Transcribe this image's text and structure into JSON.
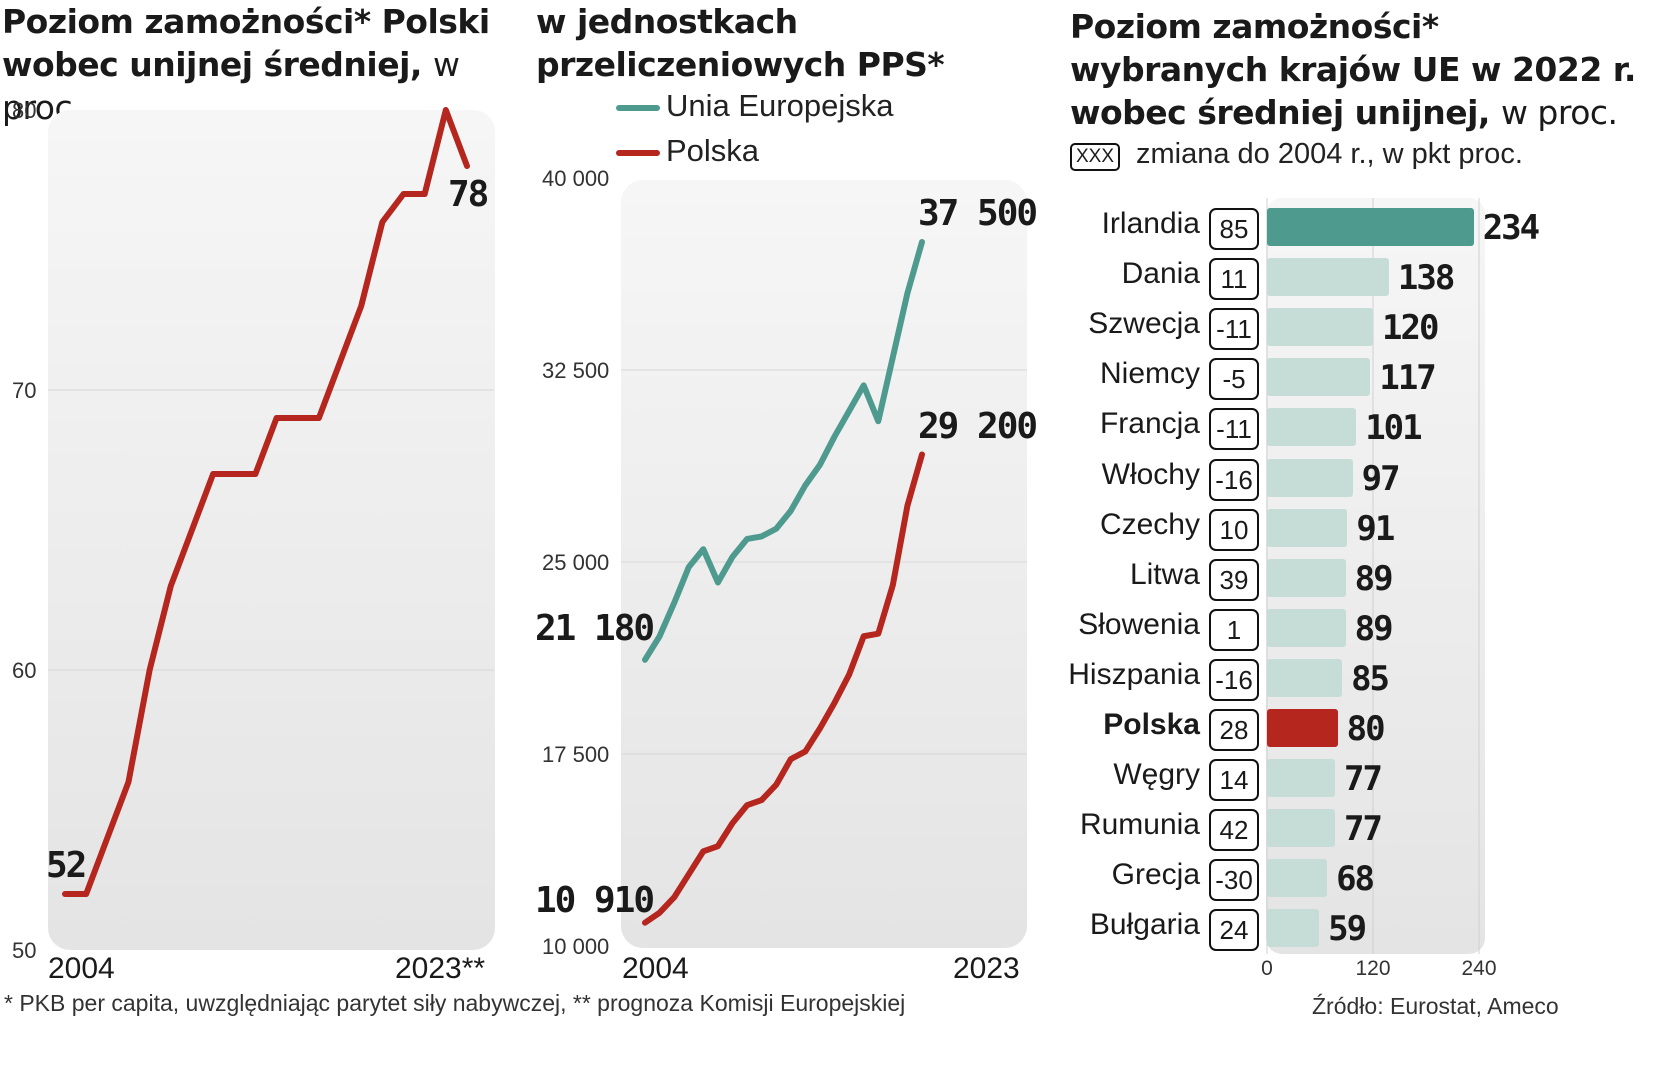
{
  "colors": {
    "poland": "#b5261e",
    "eu": "#4f9a8e",
    "bar_light": "#c6ddd7",
    "bar_ireland": "#4f9a8e",
    "bar_poland": "#b5261e"
  },
  "panel1": {
    "title_bold": "Poziom zamożności* Polski",
    "title_bold2": "wobec unijnej średniej,",
    "title_light": "w proc.",
    "start_label": "52",
    "end_label": "78",
    "x_start": "2004",
    "x_end": "2023**"
  },
  "panel2": {
    "title_line1": "w jednostkach",
    "title_line2": "przeliczeniowych PPS*",
    "legend_eu": "Unia Europejska",
    "legend_pl": "Polska",
    "eu_start_label": "21 180",
    "eu_end_label": "37 500",
    "pl_start_label": "10 910",
    "pl_end_label": "29 200",
    "x_start": "2004",
    "x_end": "2023"
  },
  "panel3": {
    "title_line1": "Poziom zamożności*",
    "title_line2": "wybranych krajów UE w 2022 r.",
    "title_line3_bold": "wobec średniej unijnej,",
    "title_line3_light": "w proc.",
    "legend_box": "XXX",
    "legend_text": "zmiana do 2004 r., w pkt proc."
  },
  "footnote": "* PKB per capita, uwzględniając parytet siły nabywczej, ** prognoza Komisji Europejskiej",
  "source": "Źródło: Eurostat, Ameco",
  "chart_data": [
    {
      "type": "line",
      "title": "Poziom zamożności* Polski wobec unijnej średniej, w proc.",
      "ylim": [
        50,
        80
      ],
      "yticks": [
        "50",
        "60",
        "70",
        "80"
      ],
      "x": [
        2004,
        2005,
        2006,
        2007,
        2008,
        2009,
        2010,
        2011,
        2012,
        2013,
        2014,
        2015,
        2016,
        2017,
        2018,
        2019,
        2020,
        2021,
        2022,
        2023
      ],
      "series": [
        {
          "name": "Polska",
          "values": [
            52,
            52,
            54,
            56,
            60,
            63,
            65,
            67,
            67,
            67,
            69,
            69,
            69,
            71,
            73,
            76,
            77,
            77,
            80,
            78
          ]
        }
      ]
    },
    {
      "type": "line",
      "title": "w jednostkach przeliczeniowych PPS*",
      "ylim": [
        10000,
        40000
      ],
      "yticks": [
        "10 000",
        "17 500",
        "25 000",
        "32 500",
        "40 000"
      ],
      "x": [
        2004,
        2005,
        2006,
        2007,
        2008,
        2009,
        2010,
        2011,
        2012,
        2013,
        2014,
        2015,
        2016,
        2017,
        2018,
        2019,
        2020,
        2021,
        2022,
        2023
      ],
      "series": [
        {
          "name": "Unia Europejska",
          "values": [
            21180,
            22100,
            23400,
            24800,
            25500,
            24200,
            25200,
            25900,
            26000,
            26300,
            27000,
            28000,
            28800,
            29900,
            30900,
            31900,
            30500,
            33000,
            35500,
            37500
          ]
        },
        {
          "name": "Polska",
          "values": [
            10910,
            11300,
            11900,
            12800,
            13700,
            13900,
            14800,
            15500,
            15700,
            16300,
            17300,
            17600,
            18500,
            19500,
            20600,
            22100,
            22200,
            24100,
            27200,
            29200
          ]
        }
      ]
    },
    {
      "type": "bar",
      "title": "Poziom zamożności* wybranych krajów UE w 2022 r. wobec średniej unijnej, w proc.",
      "xlim": [
        0,
        240
      ],
      "xticks": [
        "0",
        "120",
        "240"
      ],
      "categories": [
        "Irlandia",
        "Dania",
        "Szwecja",
        "Niemcy",
        "Francja",
        "Włochy",
        "Czechy",
        "Litwa",
        "Słowenia",
        "Hiszpania",
        "Polska",
        "Węgry",
        "Rumunia",
        "Grecja",
        "Bułgaria"
      ],
      "values": [
        234,
        138,
        120,
        117,
        101,
        97,
        91,
        89,
        89,
        85,
        80,
        77,
        77,
        68,
        59
      ],
      "changes": [
        "85",
        "11",
        "-11",
        "-5",
        "-11",
        "-16",
        "10",
        "39",
        "1",
        "-16",
        "28",
        "14",
        "42",
        "-30",
        "24"
      ],
      "value_labels": [
        "234",
        "138",
        "120",
        "117",
        "101",
        "97",
        "91",
        "89",
        "89",
        "85",
        "80",
        "77",
        "77",
        "68",
        "59"
      ]
    }
  ]
}
